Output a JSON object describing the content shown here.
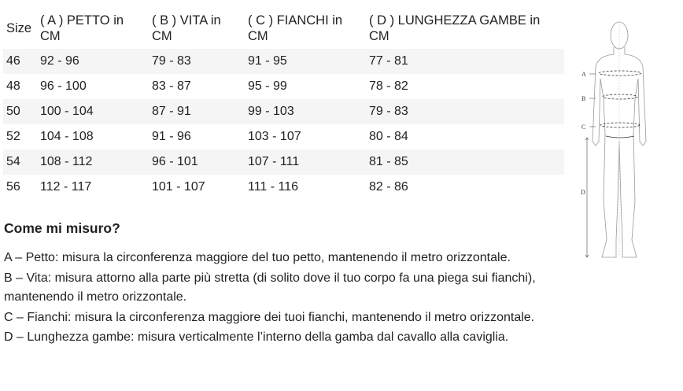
{
  "table": {
    "headers": [
      "Size",
      "( A ) PETTO in CM",
      "( B ) VITA in CM",
      "( C ) FIANCHI in CM",
      "( D ) LUNGHEZZA GAMBE in CM"
    ],
    "rows": [
      [
        "46",
        "92 - 96",
        "79 - 83",
        "91 - 95",
        "77 - 81"
      ],
      [
        "48",
        "96 - 100",
        "83 - 87",
        "95 - 99",
        "78 - 82"
      ],
      [
        "50",
        "100 - 104",
        "87 - 91",
        "99 - 103",
        "79 - 83"
      ],
      [
        "52",
        "104 - 108",
        "91 - 96",
        "103 - 107",
        "80 - 84"
      ],
      [
        "54",
        "108 - 112",
        "96 - 101",
        "107 - 111",
        "81 - 85"
      ],
      [
        "56",
        "112 - 117",
        "101 - 107",
        "111 - 116",
        "82 - 86"
      ]
    ]
  },
  "guide": {
    "title": "Come mi misuro?",
    "items": [
      "A – Petto: misura la circonferenza maggiore del tuo petto, mantenendo il metro orizzontale.",
      "B – Vita: misura attorno alla parte più stretta (di solito dove il tuo corpo fa una piega sui fianchi), mantenendo il metro orizzontale.",
      "C – Fianchi: misura la circonferenza maggiore dei tuoi fianchi, mantenendo il metro orizzontale.",
      "D – Lunghezza gambe: misura verticalmente l’interno della gamba dal cavallo alla caviglia."
    ]
  },
  "figure": {
    "labels": [
      "A",
      "B",
      "C",
      "D"
    ]
  }
}
